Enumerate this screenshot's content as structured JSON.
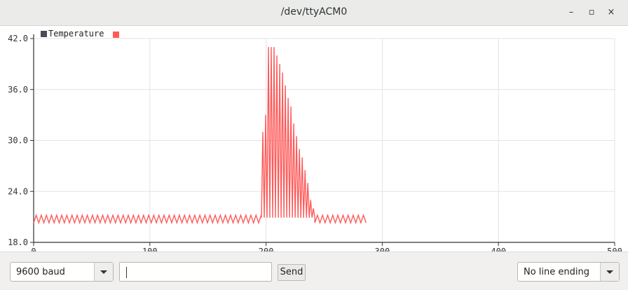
{
  "window": {
    "title": "/dev/ttyACM0"
  },
  "window_controls": {
    "minimize": "–",
    "maximize": "▫",
    "close": "×"
  },
  "legend": {
    "series_name": "Temperature"
  },
  "colors": {
    "series": "#ff5a5a",
    "legend_marker_dark": "#4a4a56",
    "grid": "#e3e3e3",
    "axis": "#333333"
  },
  "chart_data": {
    "type": "line",
    "series": [
      {
        "name": "Temperature",
        "color": "#ff5a5a"
      }
    ],
    "xlim": [
      0,
      500
    ],
    "ylim": [
      18.0,
      42.0
    ],
    "x_ticks": [
      "0",
      "100",
      "200",
      "300",
      "400",
      "500"
    ],
    "y_ticks": [
      "18.0",
      "24.0",
      "30.0",
      "36.0",
      "42.0"
    ],
    "segments": [
      {
        "x_start": 0,
        "x_end": 196,
        "low": 20.3,
        "high": 21.2
      },
      {
        "x_start": 196,
        "x_end": 242,
        "low": 20.9,
        "peaks": [
          31.0,
          33.0,
          41.0,
          41.0,
          41.0,
          40.0,
          39.0,
          38.0,
          36.5,
          35.0,
          34.0,
          32.0,
          30.5,
          29.0,
          28.0,
          26.5,
          25.0,
          23.0,
          22.0
        ]
      },
      {
        "x_start": 242,
        "x_end": 288,
        "low": 20.3,
        "high": 21.2
      }
    ],
    "grid": true,
    "legend_position": "top-left"
  },
  "controls": {
    "baud": "9600 baud",
    "send_input_value": "",
    "send_label": "Send",
    "line_ending": "No line ending"
  }
}
